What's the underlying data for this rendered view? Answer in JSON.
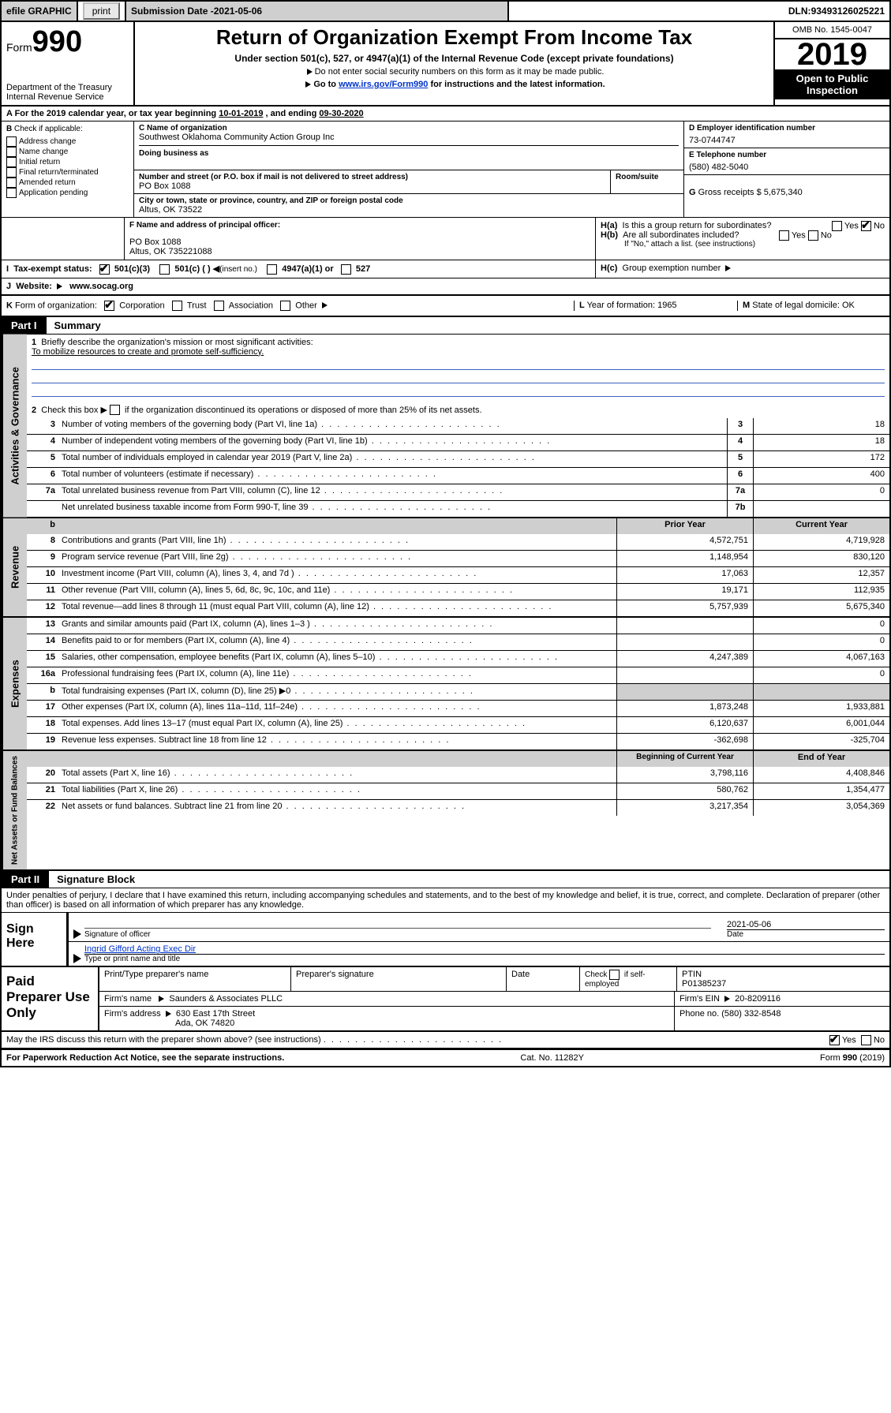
{
  "topbar": {
    "efile": "efile GRAPHIC",
    "print": "print",
    "subdate_label": "Submission Date - ",
    "subdate": "2021-05-06",
    "dln_label": "DLN: ",
    "dln": "93493126025221"
  },
  "header": {
    "form_prefix": "Form",
    "form_num": "990",
    "dept": "Department of the Treasury",
    "irs": "Internal Revenue Service",
    "title": "Return of Organization Exempt From Income Tax",
    "sub1": "Under section 501(c), 527, or 4947(a)(1) of the Internal Revenue Code (except private foundations)",
    "sub2": "Do not enter social security numbers on this form as it may be made public.",
    "sub3_a": "Go to ",
    "sub3_link": "www.irs.gov/Form990",
    "sub3_b": " for instructions and the latest information.",
    "omb": "OMB No. 1545-0047",
    "year": "2019",
    "open": "Open to Public Inspection"
  },
  "lineA": {
    "prefix": "A For the 2019 calendar year, or tax year beginning ",
    "begin": "10-01-2019",
    "mid": " , and ending ",
    "end": "09-30-2020"
  },
  "colB": {
    "label": "B",
    "check": "Check if applicable:",
    "o1": "Address change",
    "o2": "Name change",
    "o3": "Initial return",
    "o4": "Final return/terminated",
    "o5": "Amended return",
    "o6": "Application pending"
  },
  "colC": {
    "c_lbl": "C Name of organization",
    "c_name": "Southwest Oklahoma Community Action Group Inc",
    "dba_lbl": "Doing business as",
    "addr_lbl": "Number and street (or P.O. box if mail is not delivered to street address)",
    "room_lbl": "Room/suite",
    "addr": "PO Box 1088",
    "city_lbl": "City or town, state or province, country, and ZIP or foreign postal code",
    "city": "Altus, OK  73522",
    "f_lbl": "F Name and address of principal officer:",
    "f_addr1": "PO Box 1088",
    "f_addr2": "Altus, OK  735221088"
  },
  "colD": {
    "d_lbl": "D Employer identification number",
    "ein": "73-0744747",
    "e_lbl": "E Telephone number",
    "phone": "(580) 482-5040",
    "g_lbl": "G",
    "g_txt": "Gross receipts $",
    "g_val": "5,675,340"
  },
  "colH": {
    "ha_lbl": "H(a)",
    "ha_q": "Is this a group return for subordinates?",
    "yes": "Yes",
    "no": "No",
    "hb_lbl": "H(b)",
    "hb_q": "Are all subordinates included?",
    "hb_note": "If \"No,\" attach a list. (see instructions)",
    "hc_lbl": "H(c)",
    "hc_q": "Group exemption number"
  },
  "lineI": {
    "lbl": "I",
    "txt": "Tax-exempt status:",
    "o1": "501(c)(3)",
    "o2": "501(c) (  )",
    "o2b": "(insert no.)",
    "o3": "4947(a)(1) or",
    "o4": "527"
  },
  "lineJ": {
    "lbl": "J",
    "txt": "Website:",
    "url": "www.socag.org"
  },
  "lineK": {
    "lbl": "K",
    "txt": "Form of organization:",
    "o1": "Corporation",
    "o2": "Trust",
    "o3": "Association",
    "o4": "Other",
    "l_lbl": "L",
    "l_txt": "Year of formation:",
    "l_val": "1965",
    "m_lbl": "M",
    "m_txt": "State of legal domicile:",
    "m_val": "OK"
  },
  "part1": {
    "tag": "Part I",
    "title": "Summary"
  },
  "gov": {
    "side": "Activities & Governance",
    "l1_lbl": "1",
    "l1": "Briefly describe the organization's mission or most significant activities:",
    "l1_val": "To mobilize resources to create and promote self-sufficiency.",
    "l2_lbl": "2",
    "l2": "Check this box ▶",
    "l2b": "if the organization discontinued its operations or disposed of more than 25% of its net assets.",
    "rows": [
      {
        "n": "3",
        "d": "Number of voting members of the governing body (Part VI, line 1a)",
        "b": "3",
        "v": "18"
      },
      {
        "n": "4",
        "d": "Number of independent voting members of the governing body (Part VI, line 1b)",
        "b": "4",
        "v": "18"
      },
      {
        "n": "5",
        "d": "Total number of individuals employed in calendar year 2019 (Part V, line 2a)",
        "b": "5",
        "v": "172"
      },
      {
        "n": "6",
        "d": "Total number of volunteers (estimate if necessary)",
        "b": "6",
        "v": "400"
      },
      {
        "n": "7a",
        "d": "Total unrelated business revenue from Part VIII, column (C), line 12",
        "b": "7a",
        "v": "0"
      },
      {
        "n": "",
        "d": "Net unrelated business taxable income from Form 990-T, line 39",
        "b": "7b",
        "v": ""
      }
    ]
  },
  "rev": {
    "side": "Revenue",
    "hdr_b": "b",
    "hdr1": "Prior Year",
    "hdr2": "Current Year",
    "rows": [
      {
        "n": "8",
        "d": "Contributions and grants (Part VIII, line 1h)",
        "v1": "4,572,751",
        "v2": "4,719,928"
      },
      {
        "n": "9",
        "d": "Program service revenue (Part VIII, line 2g)",
        "v1": "1,148,954",
        "v2": "830,120"
      },
      {
        "n": "10",
        "d": "Investment income (Part VIII, column (A), lines 3, 4, and 7d )",
        "v1": "17,063",
        "v2": "12,357"
      },
      {
        "n": "11",
        "d": "Other revenue (Part VIII, column (A), lines 5, 6d, 8c, 9c, 10c, and 11e)",
        "v1": "19,171",
        "v2": "112,935"
      },
      {
        "n": "12",
        "d": "Total revenue—add lines 8 through 11 (must equal Part VIII, column (A), line 12)",
        "v1": "5,757,939",
        "v2": "5,675,340"
      }
    ]
  },
  "exp": {
    "side": "Expenses",
    "rows": [
      {
        "n": "13",
        "d": "Grants and similar amounts paid (Part IX, column (A), lines 1–3 )",
        "v1": "",
        "v2": "0"
      },
      {
        "n": "14",
        "d": "Benefits paid to or for members (Part IX, column (A), line 4)",
        "v1": "",
        "v2": "0"
      },
      {
        "n": "15",
        "d": "Salaries, other compensation, employee benefits (Part IX, column (A), lines 5–10)",
        "v1": "4,247,389",
        "v2": "4,067,163"
      },
      {
        "n": "16a",
        "d": "Professional fundraising fees (Part IX, column (A), line 11e)",
        "v1": "",
        "v2": "0"
      },
      {
        "n": "b",
        "d": "Total fundraising expenses (Part IX, column (D), line 25) ▶0",
        "v1": "shade",
        "v2": "shade"
      },
      {
        "n": "17",
        "d": "Other expenses (Part IX, column (A), lines 11a–11d, 11f–24e)",
        "v1": "1,873,248",
        "v2": "1,933,881"
      },
      {
        "n": "18",
        "d": "Total expenses. Add lines 13–17 (must equal Part IX, column (A), line 25)",
        "v1": "6,120,637",
        "v2": "6,001,044"
      },
      {
        "n": "19",
        "d": "Revenue less expenses. Subtract line 18 from line 12",
        "v1": "-362,698",
        "v2": "-325,704"
      }
    ]
  },
  "net": {
    "side": "Net Assets or Fund Balances",
    "hdr1": "Beginning of Current Year",
    "hdr2": "End of Year",
    "rows": [
      {
        "n": "20",
        "d": "Total assets (Part X, line 16)",
        "v1": "3,798,116",
        "v2": "4,408,846"
      },
      {
        "n": "21",
        "d": "Total liabilities (Part X, line 26)",
        "v1": "580,762",
        "v2": "1,354,477"
      },
      {
        "n": "22",
        "d": "Net assets or fund balances. Subtract line 21 from line 20",
        "v1": "3,217,354",
        "v2": "3,054,369"
      }
    ]
  },
  "part2": {
    "tag": "Part II",
    "title": "Signature Block",
    "decl": "Under penalties of perjury, I declare that I have examined this return, including accompanying schedules and statements, and to the best of my knowledge and belief, it is true, correct, and complete. Declaration of preparer (other than officer) is based on all information of which preparer has any knowledge."
  },
  "sign": {
    "here": "Sign Here",
    "sig_lbl": "Signature of officer",
    "date_lbl": "Date",
    "date": "2021-05-06",
    "name": "Ingrid Gifford  Acting Exec Dir",
    "name_lbl": "Type or print name and title"
  },
  "paid": {
    "title": "Paid Preparer Use Only",
    "h1": "Print/Type preparer's name",
    "h2": "Preparer's signature",
    "h3": "Date",
    "h4a": "Check",
    "h4b": "if self-employed",
    "h5": "PTIN",
    "ptin": "P01385237",
    "firm_lbl": "Firm's name",
    "firm": "Saunders & Associates PLLC",
    "ein_lbl": "Firm's EIN",
    "ein": "20-8209116",
    "addr_lbl": "Firm's address",
    "addr1": "630 East 17th Street",
    "addr2": "Ada, OK  74820",
    "phone_lbl": "Phone no.",
    "phone": "(580) 332-8548"
  },
  "irs_q": {
    "q": "May the IRS discuss this return with the preparer shown above? (see instructions)",
    "yes": "Yes",
    "no": "No"
  },
  "footer": {
    "l": "For Paperwork Reduction Act Notice, see the separate instructions.",
    "m": "Cat. No. 11282Y",
    "r": "Form 990 (2019)"
  }
}
